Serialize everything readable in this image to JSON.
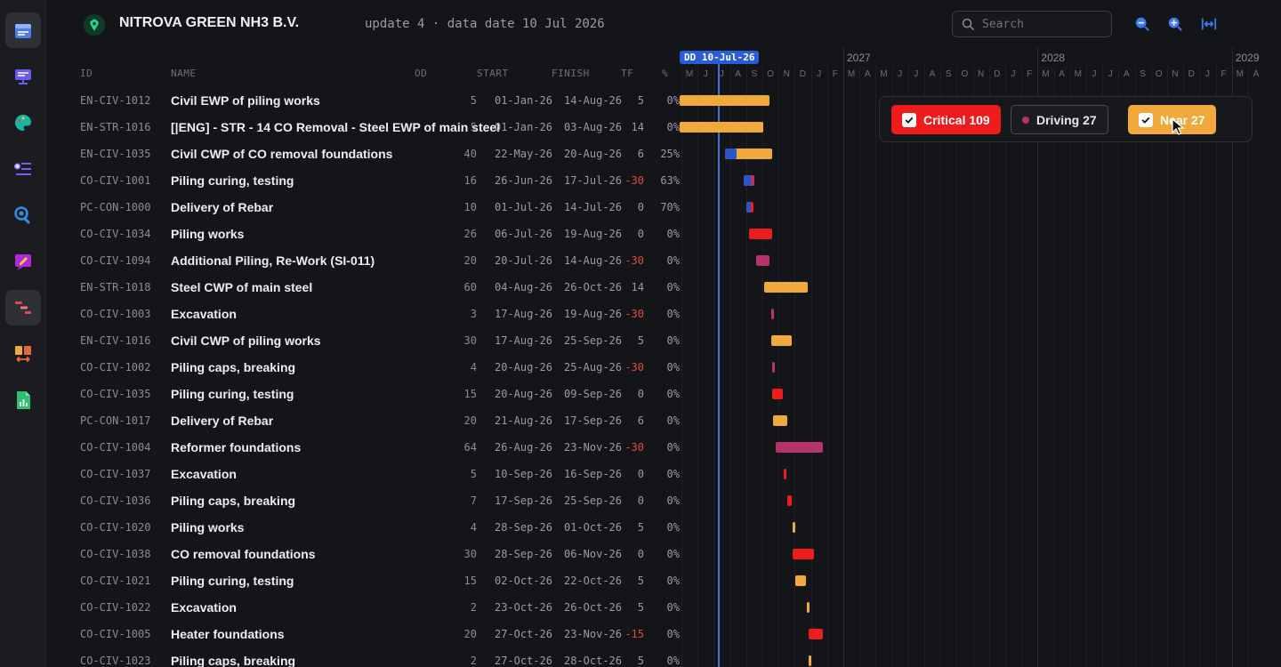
{
  "header": {
    "company": "NITROVA GREEN NH3 B.V.",
    "update_text": "update 4 · data date 10 Jul 2026",
    "search_placeholder": "Search"
  },
  "columns": {
    "id": "ID",
    "name": "NAME",
    "od": "OD",
    "start": "START",
    "finish": "FINISH",
    "tf": "TF",
    "pct": "%"
  },
  "timeline": {
    "data_date_label": "DD 10-Jul-26",
    "years": [
      "2027",
      "2028",
      "2029"
    ],
    "months": [
      "M",
      "J",
      "J",
      "A",
      "S",
      "O",
      "N",
      "D",
      "J",
      "F",
      "M",
      "A",
      "M",
      "J",
      "J",
      "A",
      "S",
      "O",
      "N",
      "D",
      "J",
      "F",
      "M",
      "A",
      "M",
      "J",
      "J",
      "A",
      "S",
      "O",
      "N",
      "D",
      "J",
      "F",
      "M",
      "A"
    ]
  },
  "legend": {
    "critical": "Critical 109",
    "driving": "Driving 27",
    "near": "Near 27",
    "colors": {
      "critical": "#ee1c1c",
      "driving": "#b3336a",
      "near": "#f2a93b",
      "progress": "#2c55c7"
    }
  },
  "rows": [
    {
      "id": "EN-CIV-1012",
      "name": "Civil EWP of piling works",
      "od": "5",
      "start": "01-Jan-26",
      "finish": "14-Aug-26",
      "tf": "5",
      "pct": "0%",
      "kind": "near",
      "progress": 0
    },
    {
      "id": "EN-STR-1016",
      "name": "[|ENG] - STR - 14 CO Removal - Steel EWP of main steel",
      "od": "5",
      "start": "01-Jan-26",
      "finish": "03-Aug-26",
      "tf": "14",
      "pct": "0%",
      "kind": "near",
      "progress": 0
    },
    {
      "id": "EN-CIV-1035",
      "name": "Civil CWP of CO removal foundations",
      "od": "40",
      "start": "22-May-26",
      "finish": "20-Aug-26",
      "tf": "6",
      "pct": "25%",
      "kind": "near",
      "progress": 25
    },
    {
      "id": "CO-CIV-1001",
      "name": "Piling curing, testing",
      "od": "16",
      "start": "26-Jun-26",
      "finish": "17-Jul-26",
      "tf": "-30",
      "pct": "63%",
      "kind": "driving",
      "progress": 63
    },
    {
      "id": "PC-CON-1000",
      "name": "Delivery of Rebar",
      "od": "10",
      "start": "01-Jul-26",
      "finish": "14-Jul-26",
      "tf": "0",
      "pct": "70%",
      "kind": "critical",
      "progress": 70
    },
    {
      "id": "CO-CIV-1034",
      "name": "Piling works",
      "od": "26",
      "start": "06-Jul-26",
      "finish": "19-Aug-26",
      "tf": "0",
      "pct": "0%",
      "kind": "critical",
      "progress": 0
    },
    {
      "id": "CO-CIV-1094",
      "name": "Additional Piling, Re-Work (SI-011)",
      "od": "20",
      "start": "20-Jul-26",
      "finish": "14-Aug-26",
      "tf": "-30",
      "pct": "0%",
      "kind": "driving",
      "progress": 0
    },
    {
      "id": "EN-STR-1018",
      "name": "Steel CWP of main steel",
      "od": "60",
      "start": "04-Aug-26",
      "finish": "26-Oct-26",
      "tf": "14",
      "pct": "0%",
      "kind": "near",
      "progress": 0
    },
    {
      "id": "CO-CIV-1003",
      "name": "Excavation",
      "od": "3",
      "start": "17-Aug-26",
      "finish": "19-Aug-26",
      "tf": "-30",
      "pct": "0%",
      "kind": "driving",
      "progress": 0
    },
    {
      "id": "EN-CIV-1016",
      "name": "Civil CWP of piling works",
      "od": "30",
      "start": "17-Aug-26",
      "finish": "25-Sep-26",
      "tf": "5",
      "pct": "0%",
      "kind": "near",
      "progress": 0
    },
    {
      "id": "CO-CIV-1002",
      "name": "Piling caps, breaking",
      "od": "4",
      "start": "20-Aug-26",
      "finish": "25-Aug-26",
      "tf": "-30",
      "pct": "0%",
      "kind": "driving",
      "progress": 0
    },
    {
      "id": "CO-CIV-1035",
      "name": "Piling curing, testing",
      "od": "15",
      "start": "20-Aug-26",
      "finish": "09-Sep-26",
      "tf": "0",
      "pct": "0%",
      "kind": "critical",
      "progress": 0
    },
    {
      "id": "PC-CON-1017",
      "name": "Delivery of Rebar",
      "od": "20",
      "start": "21-Aug-26",
      "finish": "17-Sep-26",
      "tf": "6",
      "pct": "0%",
      "kind": "near",
      "progress": 0
    },
    {
      "id": "CO-CIV-1004",
      "name": "Reformer foundations",
      "od": "64",
      "start": "26-Aug-26",
      "finish": "23-Nov-26",
      "tf": "-30",
      "pct": "0%",
      "kind": "driving",
      "progress": 0
    },
    {
      "id": "CO-CIV-1037",
      "name": "Excavation",
      "od": "5",
      "start": "10-Sep-26",
      "finish": "16-Sep-26",
      "tf": "0",
      "pct": "0%",
      "kind": "critical",
      "progress": 0
    },
    {
      "id": "CO-CIV-1036",
      "name": "Piling caps, breaking",
      "od": "7",
      "start": "17-Sep-26",
      "finish": "25-Sep-26",
      "tf": "0",
      "pct": "0%",
      "kind": "critical",
      "progress": 0
    },
    {
      "id": "CO-CIV-1020",
      "name": "Piling works",
      "od": "4",
      "start": "28-Sep-26",
      "finish": "01-Oct-26",
      "tf": "5",
      "pct": "0%",
      "kind": "near",
      "progress": 0
    },
    {
      "id": "CO-CIV-1038",
      "name": "CO removal foundations",
      "od": "30",
      "start": "28-Sep-26",
      "finish": "06-Nov-26",
      "tf": "0",
      "pct": "0%",
      "kind": "critical",
      "progress": 0
    },
    {
      "id": "CO-CIV-1021",
      "name": "Piling curing, testing",
      "od": "15",
      "start": "02-Oct-26",
      "finish": "22-Oct-26",
      "tf": "5",
      "pct": "0%",
      "kind": "near",
      "progress": 0
    },
    {
      "id": "CO-CIV-1022",
      "name": "Excavation",
      "od": "2",
      "start": "23-Oct-26",
      "finish": "26-Oct-26",
      "tf": "5",
      "pct": "0%",
      "kind": "near",
      "progress": 0
    },
    {
      "id": "CO-CIV-1005",
      "name": "Heater foundations",
      "od": "20",
      "start": "27-Oct-26",
      "finish": "23-Nov-26",
      "tf": "-15",
      "pct": "0%",
      "kind": "critical",
      "progress": 0
    },
    {
      "id": "CO-CIV-1023",
      "name": "Piling caps, breaking",
      "od": "2",
      "start": "27-Oct-26",
      "finish": "28-Oct-26",
      "tf": "5",
      "pct": "0%",
      "kind": "near",
      "progress": 0
    }
  ]
}
